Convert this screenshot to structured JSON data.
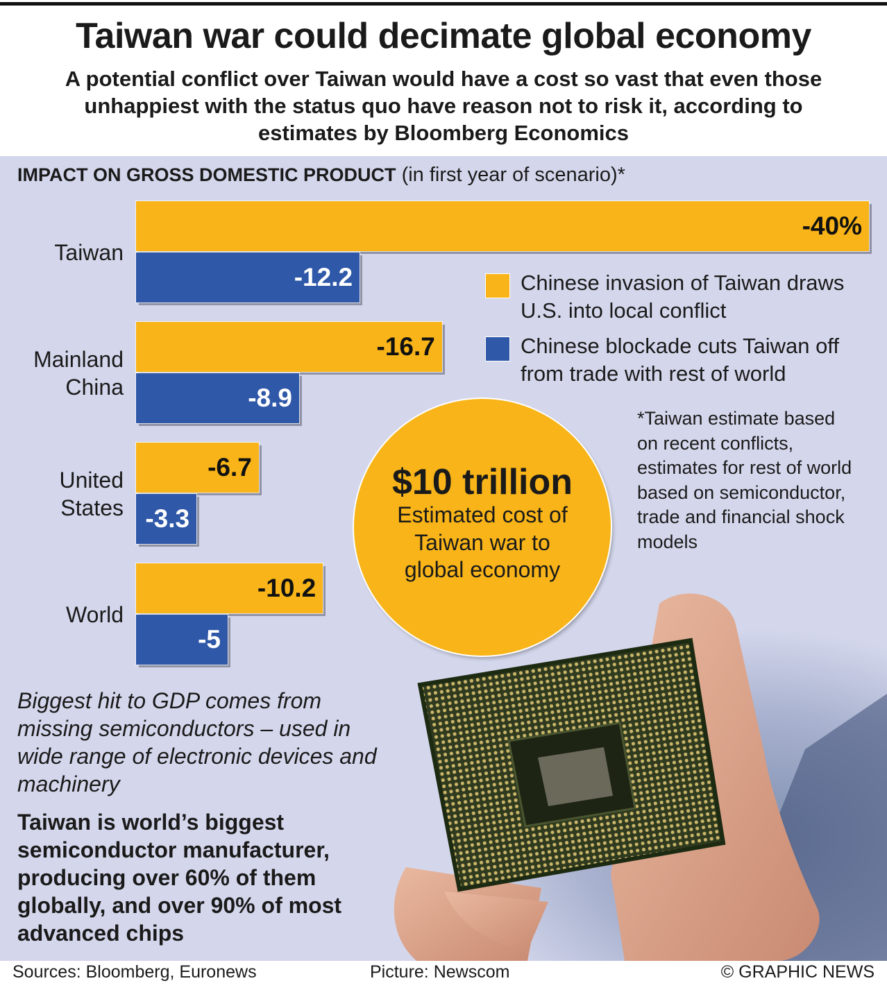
{
  "title": "Taiwan war could decimate global economy",
  "subtitle": "A potential conflict over Taiwan would have a cost so vast that even those unhappiest with the status quo have reason not to risk it, according to estimates by Bloomberg Economics",
  "chart_data": {
    "type": "bar",
    "orientation": "horizontal",
    "title": "IMPACT ON GROSS DOMESTIC PRODUCT",
    "subtitle": "(in first year of scenario)*",
    "categories": [
      "Taiwan",
      "Mainland China",
      "United States",
      "World"
    ],
    "series": [
      {
        "name": "Chinese invasion of Taiwan draws U.S. into local conflict",
        "color": "#f8b418",
        "values": [
          -40,
          -16.7,
          -6.7,
          -10.2
        ],
        "value_labels": [
          "-40%",
          "-16.7",
          "-6.7",
          "-10.2"
        ]
      },
      {
        "name": "Chinese blockade cuts Taiwan off from trade with rest of world",
        "color": "#2f58a8",
        "values": [
          -12.2,
          -8.9,
          -3.3,
          -5
        ]
      }
    ],
    "footnote": "*Taiwan estimate based on recent conflicts, estimates for rest of world based on semiconductor, trade and financial shock models"
  },
  "callout": {
    "headline": "$10 trillion",
    "text": "Estimated cost of Taiwan war to global economy"
  },
  "notes": [
    "Biggest hit to GDP comes from missing semiconductors – used in wide range of electronic devices and machinery",
    "Taiwan is world’s biggest semiconductor manufacturer, producing over 60% of them globally, and over 90% of most advanced chips"
  ],
  "footer": {
    "sources": "Sources: Bloomberg, Euronews",
    "picture": "Picture: Newscom",
    "credit": "© GRAPHIC NEWS"
  }
}
